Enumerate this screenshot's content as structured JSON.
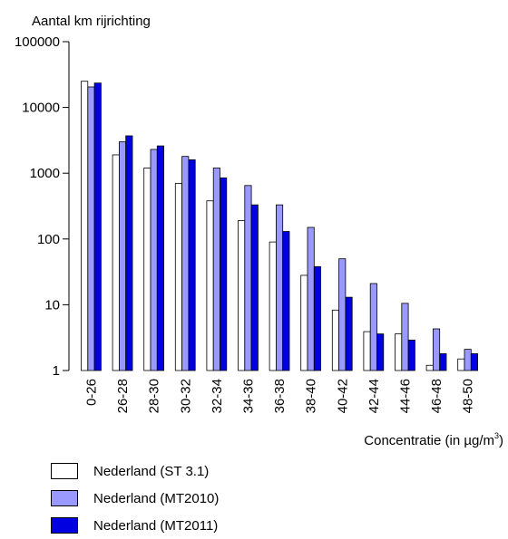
{
  "chart_data": {
    "type": "bar",
    "ylabel": "Aantal km rijrichting",
    "xlabel": "Concentratie (in µg/m",
    "xlabel_sup": "3",
    "xlabel_close": ")",
    "yscale": "log",
    "ylim": [
      1,
      100000
    ],
    "yticks": [
      "1",
      "10",
      "100",
      "1000",
      "10000",
      "100000"
    ],
    "categories": [
      "0-26",
      "26-28",
      "28-30",
      "30-32",
      "32-34",
      "34-36",
      "36-38",
      "38-40",
      "40-42",
      "42-44",
      "44-46",
      "46-48",
      "48-50"
    ],
    "series": [
      {
        "name": "Nederland (ST 3.1)",
        "color": "#ffffff",
        "values": [
          25000,
          1900,
          1200,
          700,
          380,
          190,
          90,
          28,
          8.3,
          3.9,
          3.6,
          1.2,
          1.5
        ]
      },
      {
        "name": "Nederland (MT2010)",
        "color": "#9999ff",
        "values": [
          20500,
          3000,
          2300,
          1800,
          1200,
          650,
          330,
          150,
          50,
          21,
          10.5,
          4.3,
          2.1
        ]
      },
      {
        "name": "Nederland (MT2011)",
        "color": "#0000e0",
        "values": [
          23500,
          3700,
          2600,
          1600,
          850,
          330,
          130,
          38,
          13,
          3.6,
          2.9,
          1.8,
          1.8
        ]
      }
    ],
    "grid": false,
    "legend_position": "bottom-left"
  }
}
